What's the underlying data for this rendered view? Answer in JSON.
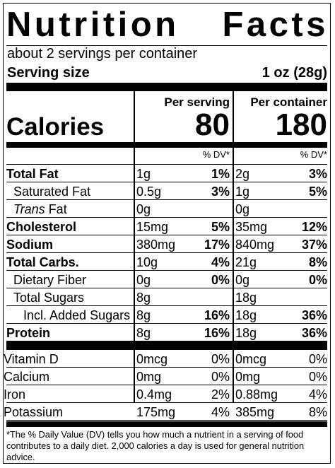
{
  "title": "Nutrition Facts",
  "servings_per_container": "about 2 servings per container",
  "serving_size_label": "Serving size",
  "serving_size_value": "1 oz (28g)",
  "per_serving_label": "Per serving",
  "per_container_label": "Per container",
  "calories_label": "Calories",
  "calories_per_serving": "80",
  "calories_per_container": "180",
  "dv_header": "% DV*",
  "nutrients": [
    {
      "name": "Total Fat",
      "bold": true,
      "indent": 0,
      "serving_amount": "1g",
      "serving_dv": "1%",
      "container_amount": "2g",
      "container_dv": "3%"
    },
    {
      "name": "Saturated Fat",
      "bold": false,
      "indent": 1,
      "serving_amount": "0.5g",
      "serving_dv": "3%",
      "container_amount": "1g",
      "container_dv": "5%"
    },
    {
      "name_italic": "Trans",
      "name": " Fat",
      "bold": false,
      "indent": 1,
      "serving_amount": "0g",
      "serving_dv": "",
      "container_amount": "0g",
      "container_dv": ""
    },
    {
      "name": "Cholesterol",
      "bold": true,
      "indent": 0,
      "serving_amount": "15mg",
      "serving_dv": "5%",
      "container_amount": "35mg",
      "container_dv": "12%"
    },
    {
      "name": "Sodium",
      "bold": true,
      "indent": 0,
      "serving_amount": "380mg",
      "serving_dv": "17%",
      "container_amount": "840mg",
      "container_dv": "37%"
    },
    {
      "name": "Total Carbs.",
      "bold": true,
      "indent": 0,
      "serving_amount": "10g",
      "serving_dv": "4%",
      "container_amount": "21g",
      "container_dv": "8%"
    },
    {
      "name": "Dietary Fiber",
      "bold": false,
      "indent": 1,
      "serving_amount": "0g",
      "serving_dv": "0%",
      "container_amount": "0g",
      "container_dv": "0%"
    },
    {
      "name": "Total Sugars",
      "bold": false,
      "indent": 1,
      "serving_amount": "8g",
      "serving_dv": "",
      "container_amount": "18g",
      "container_dv": ""
    },
    {
      "name": "Incl. Added Sugars",
      "bold": false,
      "indent": 2,
      "serving_amount": "8g",
      "serving_dv": "16%",
      "container_amount": "18g",
      "container_dv": "36%"
    },
    {
      "name": "Protein",
      "bold": true,
      "indent": 0,
      "serving_amount": "8g",
      "serving_dv": "16%",
      "container_amount": "18g",
      "container_dv": "36%"
    }
  ],
  "vitamins": [
    {
      "name": "Vitamin D",
      "serving_amount": "0mcg",
      "serving_dv": "0%",
      "container_amount": "0mcg",
      "container_dv": "0%"
    },
    {
      "name": "Calcium",
      "serving_amount": "0mg",
      "serving_dv": "0%",
      "container_amount": "0mg",
      "container_dv": "0%"
    },
    {
      "name": "Iron",
      "serving_amount": "0.4mg",
      "serving_dv": "2%",
      "container_amount": "0.88mg",
      "container_dv": "4%"
    },
    {
      "name": "Potassium",
      "serving_amount": "175mg",
      "serving_dv": "4%",
      "container_amount": "385mg",
      "container_dv": "8%"
    }
  ],
  "footnote": "*The % Daily Value (DV) tells you how much a nutrient in a serving of food contributes to a daily diet. 2,000 calories a day is used for general nutrition advice."
}
